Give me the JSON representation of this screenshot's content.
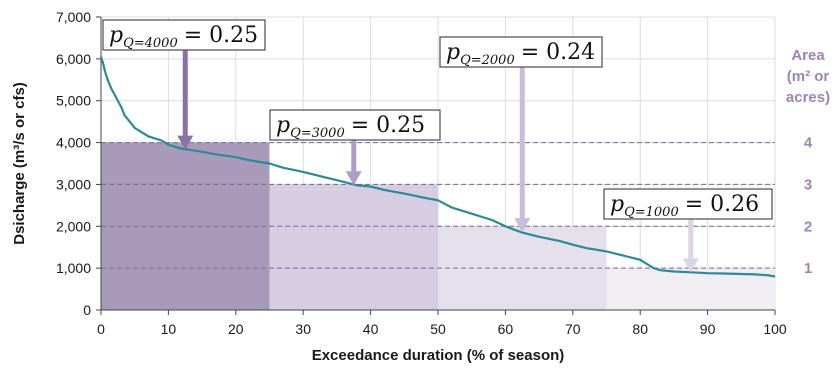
{
  "chart_data": {
    "type": "line",
    "xlabel": "Exceedance duration (% of season)",
    "ylabel": "Dsicharge (m³/s or cfs)",
    "xlim": [
      0,
      100
    ],
    "ylim": [
      0,
      7000
    ],
    "x_ticks": [
      "0",
      "10",
      "20",
      "30",
      "40",
      "50",
      "60",
      "70",
      "80",
      "90",
      "100"
    ],
    "y_ticks": [
      "0",
      "1,000",
      "2,000",
      "3,000",
      "4,000",
      "5,000",
      "6,000",
      "7,000"
    ],
    "grid": true,
    "series": [
      {
        "x": [
          0,
          0.3,
          0.6,
          1,
          1.5,
          2,
          2.5,
          3,
          3.5,
          4,
          5,
          6,
          7,
          8,
          9,
          10,
          11,
          12,
          13,
          15,
          17,
          20,
          22,
          25,
          27,
          30,
          33,
          35,
          37.5,
          38,
          40,
          42,
          45,
          48,
          50,
          52,
          55,
          58,
          60,
          62.5,
          65,
          68,
          70,
          72,
          75,
          78,
          80,
          81,
          82,
          83,
          85,
          87.5,
          90,
          93,
          95,
          97,
          99,
          100
        ],
        "y": [
          6050,
          5900,
          5700,
          5500,
          5300,
          5150,
          5000,
          4850,
          4650,
          4550,
          4350,
          4250,
          4150,
          4100,
          4050,
          3950,
          3900,
          3850,
          3830,
          3780,
          3720,
          3650,
          3580,
          3500,
          3400,
          3300,
          3180,
          3100,
          3000,
          2980,
          2950,
          2870,
          2780,
          2680,
          2620,
          2450,
          2300,
          2150,
          2000,
          1850,
          1750,
          1650,
          1560,
          1480,
          1400,
          1280,
          1200,
          1100,
          1000,
          950,
          920,
          900,
          880,
          870,
          860,
          850,
          830,
          800
        ],
        "color": "#2b8a96"
      }
    ],
    "blocks": [
      {
        "x0": 0,
        "x1": 25,
        "y": 4000,
        "color": "#a89ab9"
      },
      {
        "x0": 25,
        "x1": 50,
        "y": 3000,
        "color": "#d6cde2"
      },
      {
        "x0": 50,
        "x1": 75,
        "y": 2000,
        "color": "#e5e0ec"
      },
      {
        "x0": 75,
        "x1": 100,
        "y": 1000,
        "color": "#f0edf3"
      }
    ],
    "reference_lines": [
      4000,
      3000,
      2000,
      1000
    ],
    "area": {
      "title": [
        "Area",
        "(m² or",
        "acres)"
      ],
      "labels": [
        {
          "y": 4000,
          "text": "4"
        },
        {
          "y": 3000,
          "text": "3"
        },
        {
          "y": 2000,
          "text": "2"
        },
        {
          "y": 1000,
          "text": "1"
        }
      ],
      "color": "#9b85b8"
    },
    "annotations": [
      {
        "sub": "Q=4000",
        "value": "= 0.25",
        "arrow_x": 12.5,
        "arrow_y": 3830,
        "arrow_color": "#8a72a3"
      },
      {
        "sub": "Q=3000",
        "value": "= 0.25",
        "arrow_x": 37.5,
        "arrow_y": 2980,
        "arrow_color": "#b09dc6"
      },
      {
        "sub": "Q=2000",
        "value": "= 0.24",
        "arrow_x": 62.5,
        "arrow_y": 1860,
        "arrow_color": "#c9bdd8"
      },
      {
        "sub": "Q=1000",
        "value": "= 0.26",
        "arrow_x": 87.5,
        "arrow_y": 900,
        "arrow_color": "#ddd5e5"
      }
    ]
  }
}
